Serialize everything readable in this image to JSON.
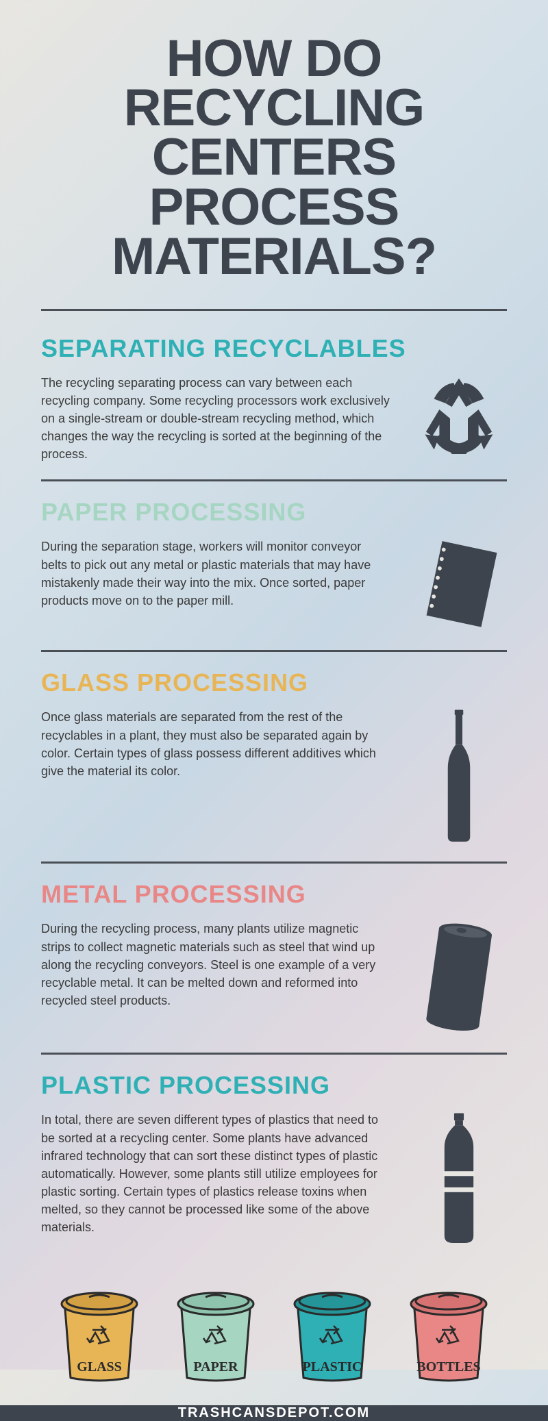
{
  "colors": {
    "title": "#3d444d",
    "divider": "#4a4f56",
    "body_text": "#3a3a3a",
    "footer_bg": "#3d444d",
    "footer_text": "#ffffff",
    "icon_fill": "#3d444d"
  },
  "title": "HOW DO RECYCLING CENTERS PROCESS MATERIALS?",
  "sections": [
    {
      "heading": "SEPARATING RECYCLABLES",
      "heading_color": "#2eb0b5",
      "text": "The recycling separating process can vary between each recycling company. Some recycling processors work exclusively on a single-stream or double-stream recycling method, which changes the way the recycling is sorted at the beginning of the process.",
      "icon": "recycle"
    },
    {
      "heading": "PAPER PROCESSING",
      "heading_color": "#a6d5c2",
      "text": "During the separation stage, workers will monitor conveyor belts to pick out any metal or plastic materials that may have mistakenly made their way into the mix. Once sorted, paper products move on to the paper mill.",
      "icon": "paper"
    },
    {
      "heading": "GLASS PROCESSING",
      "heading_color": "#e8b556",
      "text": "Once glass materials are separated from the rest of the recyclables in a plant, they must also be separated again by color. Certain types of glass possess different additives which give the material its color.",
      "icon": "bottle-glass"
    },
    {
      "heading": "METAL PROCESSING",
      "heading_color": "#e98787",
      "text": "During the recycling process, many plants utilize magnetic strips to collect magnetic materials such as steel that wind up along the recycling conveyors. Steel is one example of a very recyclable metal. It can be melted down and reformed into recycled steel products.",
      "icon": "can"
    },
    {
      "heading": "PLASTIC PROCESSING",
      "heading_color": "#2eb0b5",
      "text": "In total, there are seven different types of plastics that need to be sorted at a recycling center. Some plants have advanced infrared technology that can sort these distinct types of plastic automatically. However, some plants still utilize employees for plastic sorting. Certain types of plastics release toxins when melted, so they cannot be processed like some of the above materials.",
      "icon": "bottle-plastic"
    }
  ],
  "bins": [
    {
      "label": "GLASS",
      "body_color": "#e8b556",
      "lid_color": "#d4a044"
    },
    {
      "label": "PAPER",
      "body_color": "#a6d5c2",
      "lid_color": "#8ec4ae"
    },
    {
      "label": "PLASTIC",
      "body_color": "#2eb0b5",
      "lid_color": "#249599"
    },
    {
      "label": "BOTTLES",
      "body_color": "#e98787",
      "lid_color": "#d67272"
    }
  ],
  "footer": "TRASHCANSDEPOT.COM"
}
